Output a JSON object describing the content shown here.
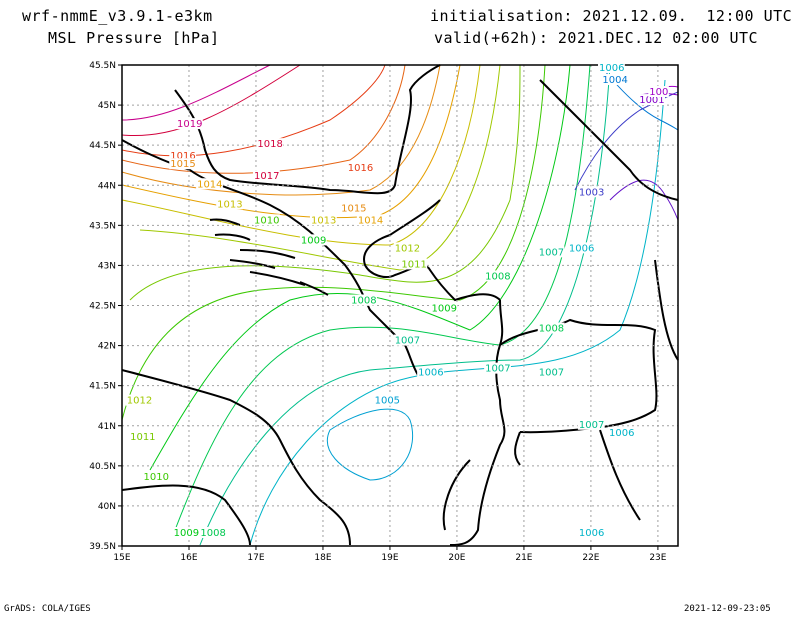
{
  "header": {
    "model": "wrf-nmmE_v3.9.1-e3km",
    "field": "MSL Pressure [hPa]",
    "init": "initialisation: 2021.12.09.  12:00 UTC",
    "valid": "valid(+62h): 2021.DEC.12 02:00 UTC"
  },
  "footer": {
    "left": "GrADS: COLA/IGES",
    "right": "2021-12-09-23:05"
  },
  "map": {
    "lat_labels": [
      "45.5N",
      "45N",
      "44.5N",
      "44N",
      "43.5N",
      "43N",
      "42.5N",
      "42N",
      "41.5N",
      "41N",
      "40.5N",
      "40N",
      "39.5N"
    ],
    "lon_labels": [
      "15E",
      "16E",
      "17E",
      "18E",
      "19E",
      "20E",
      "21E",
      "22E",
      "23E"
    ],
    "contour_labels": [
      {
        "t": "1019",
        "lon": 16.0,
        "lat": 44.75,
        "c": "#c8008c"
      },
      {
        "t": "1018",
        "lon": 17.2,
        "lat": 44.5,
        "c": "#d2003c"
      },
      {
        "t": "1017",
        "lon": 17.15,
        "lat": 44.1,
        "c": "#d2003c"
      },
      {
        "t": "1016",
        "lon": 15.9,
        "lat": 44.35,
        "c": "#e63c14"
      },
      {
        "t": "1016",
        "lon": 18.55,
        "lat": 44.2,
        "c": "#e63c14"
      },
      {
        "t": "1015",
        "lon": 15.9,
        "lat": 44.25,
        "c": "#e68c14"
      },
      {
        "t": "1015",
        "lon": 18.45,
        "lat": 43.7,
        "c": "#e68c14"
      },
      {
        "t": "1014",
        "lon": 18.7,
        "lat": 43.55,
        "c": "#e6a000"
      },
      {
        "t": "1014",
        "lon": 16.3,
        "lat": 44.0,
        "c": "#e6a000"
      },
      {
        "t": "1013",
        "lon": 16.6,
        "lat": 43.75,
        "c": "#c8be00"
      },
      {
        "t": "1013",
        "lon": 18.0,
        "lat": 43.55,
        "c": "#c8be00"
      },
      {
        "t": "1012",
        "lon": 19.25,
        "lat": 43.2,
        "c": "#a0c800"
      },
      {
        "t": "1012",
        "lon": 15.25,
        "lat": 41.3,
        "c": "#a0c800"
      },
      {
        "t": "1011",
        "lon": 19.35,
        "lat": 43.0,
        "c": "#78c800"
      },
      {
        "t": "1011",
        "lon": 15.3,
        "lat": 40.85,
        "c": "#78c800"
      },
      {
        "t": "1010",
        "lon": 17.15,
        "lat": 43.55,
        "c": "#3cc800"
      },
      {
        "t": "1010",
        "lon": 15.5,
        "lat": 40.35,
        "c": "#3cc800"
      },
      {
        "t": "1009",
        "lon": 17.85,
        "lat": 43.3,
        "c": "#00c814"
      },
      {
        "t": "1009",
        "lon": 19.8,
        "lat": 42.45,
        "c": "#00c814"
      },
      {
        "t": "1009",
        "lon": 15.95,
        "lat": 39.65,
        "c": "#00c814"
      },
      {
        "t": "1008",
        "lon": 18.6,
        "lat": 42.55,
        "c": "#00c850"
      },
      {
        "t": "1008",
        "lon": 20.6,
        "lat": 42.85,
        "c": "#00c850"
      },
      {
        "t": "1008",
        "lon": 21.4,
        "lat": 42.2,
        "c": "#00c850"
      },
      {
        "t": "1008",
        "lon": 16.35,
        "lat": 39.65,
        "c": "#00c850"
      },
      {
        "t": "1007",
        "lon": 19.25,
        "lat": 42.05,
        "c": "#00be8c"
      },
      {
        "t": "1007",
        "lon": 20.6,
        "lat": 41.7,
        "c": "#00be8c"
      },
      {
        "t": "1007",
        "lon": 21.4,
        "lat": 43.15,
        "c": "#00be8c"
      },
      {
        "t": "1007",
        "lon": 21.4,
        "lat": 41.65,
        "c": "#00be8c"
      },
      {
        "t": "1007",
        "lon": 22.0,
        "lat": 41.0,
        "c": "#00be8c"
      },
      {
        "t": "1006",
        "lon": 21.85,
        "lat": 43.2,
        "c": "#00b4c8"
      },
      {
        "t": "1006",
        "lon": 19.6,
        "lat": 41.65,
        "c": "#00b4c8"
      },
      {
        "t": "1006",
        "lon": 22.45,
        "lat": 40.9,
        "c": "#00b4c8"
      },
      {
        "t": "1006",
        "lon": 22.0,
        "lat": 39.65,
        "c": "#00b4c8"
      },
      {
        "t": "1006",
        "lon": 22.3,
        "lat": 45.45,
        "c": "#00b4c8"
      },
      {
        "t": "1005",
        "lon": 18.95,
        "lat": 41.3,
        "c": "#00a0d2"
      },
      {
        "t": "1004",
        "lon": 22.35,
        "lat": 45.3,
        "c": "#0078d2"
      },
      {
        "t": "1003",
        "lon": 22.0,
        "lat": 43.9,
        "c": "#3c3cc8"
      },
      {
        "t": "1001",
        "lon": 22.9,
        "lat": 45.05,
        "c": "#8200c8"
      },
      {
        "t": "100",
        "lon": 23.05,
        "lat": 45.15,
        "c": "#a000c8"
      }
    ]
  }
}
